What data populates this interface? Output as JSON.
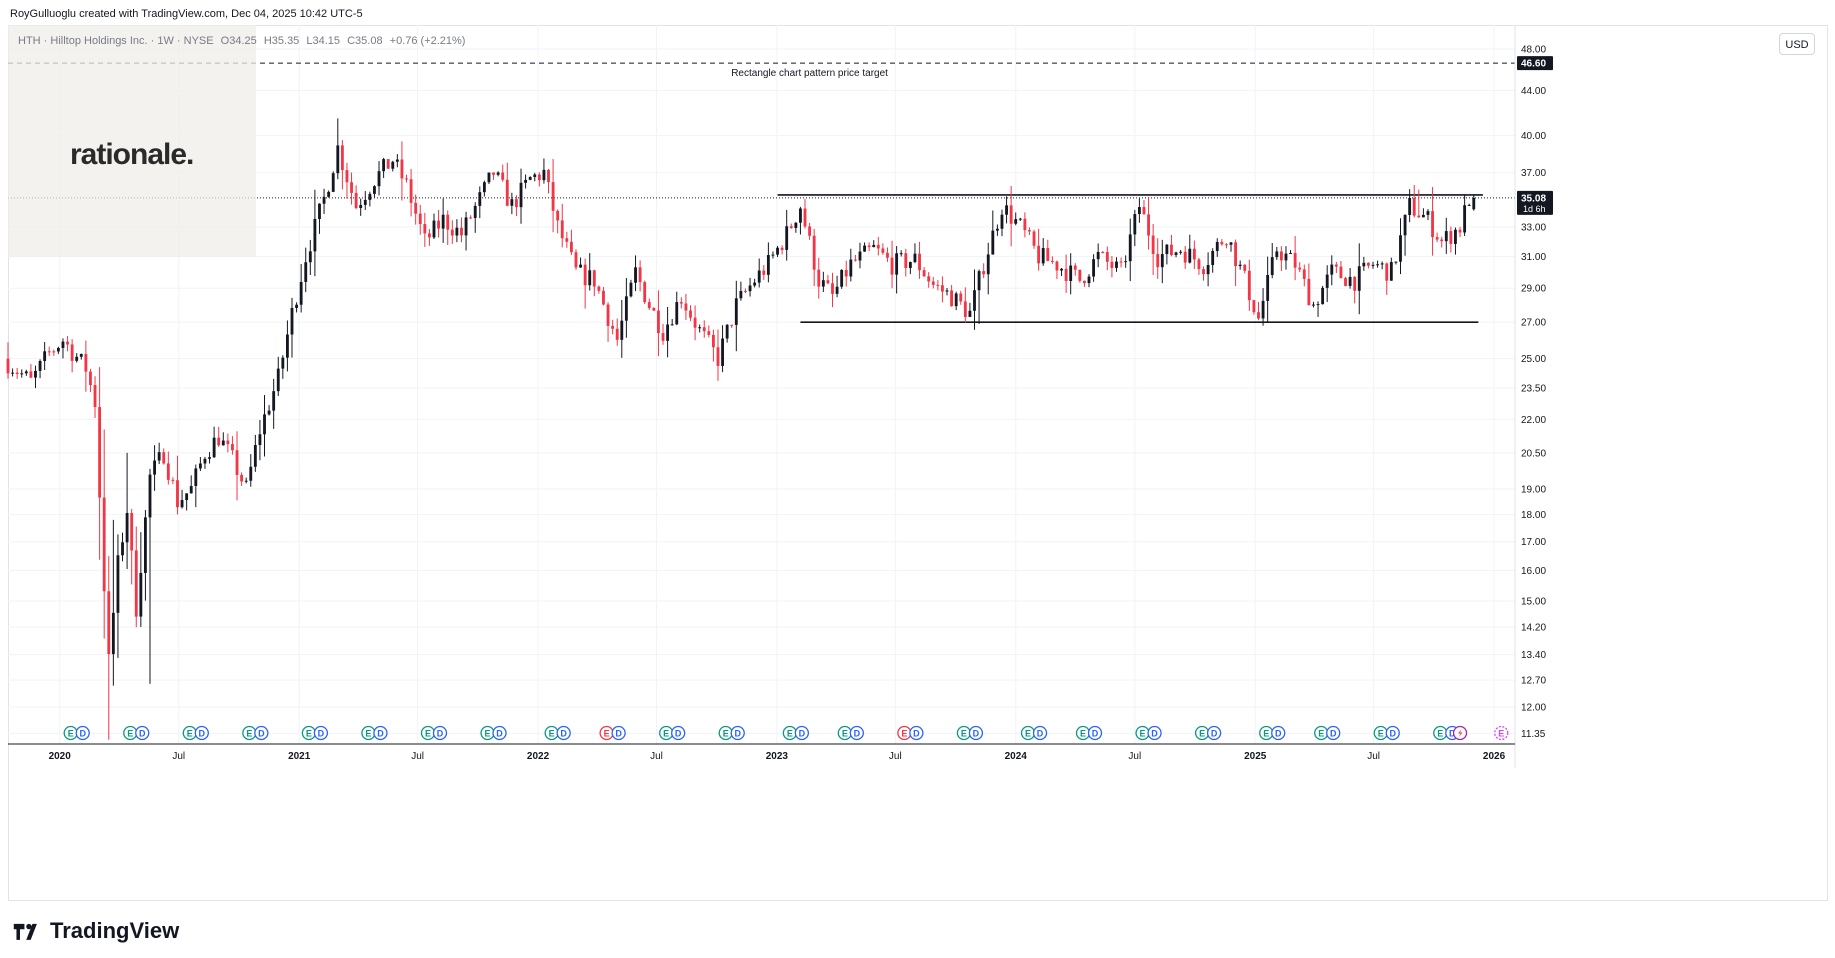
{
  "header": {
    "credit": "RoyGulluoglu created with TradingView.com, Dec 04, 2025 10:42 UTC-5",
    "symbol_line": "HTH · Hilltop Holdings Inc. · 1W · NYSE",
    "ohlc": {
      "open": "O34.25",
      "high": "H35.35",
      "low": "L34.15",
      "close": "C35.08",
      "change": "+0.76 (+2.21%)"
    }
  },
  "logo": {
    "text": "rationale."
  },
  "brand": {
    "text": "TradingView"
  },
  "toolbar": {
    "currency": "USD"
  },
  "colors": {
    "up": "#131722",
    "down": "#f23645",
    "grid": "#f0f3fa",
    "axis": "#787b86",
    "label_bg": "#131722",
    "earnings_green": "#089981",
    "earnings_red": "#f23645",
    "dividend_blue": "#2962ff"
  },
  "chart_data": {
    "type": "candlestick",
    "timeframe": "1W",
    "y_scale": "log",
    "ylim": [
      11.1,
      50.5
    ],
    "xlim": [
      "2019-10-14",
      "2026-02-02"
    ],
    "y_ticks": [
      11.35,
      12.0,
      12.7,
      13.4,
      14.2,
      15.0,
      16.0,
      17.0,
      18.0,
      19.0,
      20.5,
      22.0,
      23.5,
      25.0,
      27.0,
      29.0,
      31.0,
      33.0,
      37.0,
      40.0,
      44.0,
      48.0
    ],
    "x_ticks": [
      {
        "date": "2020-01-01",
        "label": "2020"
      },
      {
        "date": "2020-07-01",
        "label": "Jul"
      },
      {
        "date": "2021-01-01",
        "label": "2021"
      },
      {
        "date": "2021-07-01",
        "label": "Jul"
      },
      {
        "date": "2022-01-01",
        "label": "2022"
      },
      {
        "date": "2022-07-01",
        "label": "Jul"
      },
      {
        "date": "2023-01-01",
        "label": "2023"
      },
      {
        "date": "2023-07-01",
        "label": "Jul"
      },
      {
        "date": "2024-01-01",
        "label": "2024"
      },
      {
        "date": "2024-07-01",
        "label": "Jul"
      },
      {
        "date": "2025-01-01",
        "label": "2025"
      },
      {
        "date": "2025-07-01",
        "label": "Jul"
      },
      {
        "date": "2026-01-01",
        "label": "2026"
      }
    ],
    "price_anchors": [
      [
        "2019-10-14",
        25.0
      ],
      [
        "2019-11-25",
        23.8
      ],
      [
        "2019-12-23",
        25.3
      ],
      [
        "2020-01-13",
        26.0
      ],
      [
        "2020-02-17",
        24.5
      ],
      [
        "2020-03-02",
        22.8
      ],
      [
        "2020-03-16",
        15.5
      ],
      [
        "2020-03-23",
        13.2
      ],
      [
        "2020-04-06",
        16.2
      ],
      [
        "2020-04-20",
        18.2
      ],
      [
        "2020-05-04",
        14.8
      ],
      [
        "2020-05-25",
        19.5
      ],
      [
        "2020-06-15",
        20.5
      ],
      [
        "2020-07-06",
        18.5
      ],
      [
        "2020-07-27",
        19.0
      ],
      [
        "2020-08-17",
        20.5
      ],
      [
        "2020-09-07",
        21.2
      ],
      [
        "2020-09-28",
        20.2
      ],
      [
        "2020-10-19",
        19.0
      ],
      [
        "2020-11-09",
        21.5
      ],
      [
        "2020-12-07",
        24.0
      ],
      [
        "2020-12-28",
        27.5
      ],
      [
        "2021-01-18",
        31.0
      ],
      [
        "2021-02-15",
        35.0
      ],
      [
        "2021-03-08",
        39.0
      ],
      [
        "2021-04-05",
        34.5
      ],
      [
        "2021-05-03",
        36.5
      ],
      [
        "2021-05-31",
        38.0
      ],
      [
        "2021-06-21",
        36.0
      ],
      [
        "2021-07-19",
        32.0
      ],
      [
        "2021-08-16",
        33.5
      ],
      [
        "2021-09-13",
        32.5
      ],
      [
        "2021-10-11",
        35.0
      ],
      [
        "2021-11-01",
        37.0
      ],
      [
        "2021-11-29",
        34.5
      ],
      [
        "2021-12-27",
        36.5
      ],
      [
        "2022-01-17",
        37.0
      ],
      [
        "2022-02-07",
        33.0
      ],
      [
        "2022-03-07",
        30.0
      ],
      [
        "2022-04-04",
        29.5
      ],
      [
        "2022-05-09",
        26.0
      ],
      [
        "2022-06-06",
        30.0
      ],
      [
        "2022-06-27",
        28.0
      ],
      [
        "2022-07-18",
        26.5
      ],
      [
        "2022-08-15",
        28.5
      ],
      [
        "2022-09-12",
        26.5
      ],
      [
        "2022-10-10",
        25.0
      ],
      [
        "2022-11-07",
        28.0
      ],
      [
        "2022-12-05",
        29.5
      ],
      [
        "2022-12-26",
        30.5
      ],
      [
        "2023-01-23",
        32.5
      ],
      [
        "2023-02-13",
        34.5
      ],
      [
        "2023-03-13",
        29.5
      ],
      [
        "2023-04-03",
        28.5
      ],
      [
        "2023-05-01",
        30.5
      ],
      [
        "2023-06-05",
        31.5
      ],
      [
        "2023-07-03",
        30.5
      ],
      [
        "2023-08-07",
        30.8
      ],
      [
        "2023-09-04",
        29.2
      ],
      [
        "2023-10-02",
        28.5
      ],
      [
        "2023-10-30",
        27.5
      ],
      [
        "2023-11-20",
        30.5
      ],
      [
        "2023-12-18",
        34.5
      ],
      [
        "2024-01-15",
        33.0
      ],
      [
        "2024-02-12",
        31.0
      ],
      [
        "2024-03-11",
        30.5
      ],
      [
        "2024-04-15",
        29.5
      ],
      [
        "2024-05-13",
        31.0
      ],
      [
        "2024-06-17",
        30.0
      ],
      [
        "2024-07-15",
        34.5
      ],
      [
        "2024-08-12",
        31.0
      ],
      [
        "2024-09-16",
        31.5
      ],
      [
        "2024-10-21",
        30.5
      ],
      [
        "2024-11-25",
        32.5
      ],
      [
        "2024-12-23",
        29.5
      ],
      [
        "2025-01-13",
        27.2
      ],
      [
        "2025-02-10",
        31.5
      ],
      [
        "2025-03-10",
        30.5
      ],
      [
        "2025-04-07",
        28.0
      ],
      [
        "2025-05-05",
        30.0
      ],
      [
        "2025-06-09",
        29.5
      ],
      [
        "2025-07-07",
        30.5
      ],
      [
        "2025-08-04",
        30.0
      ],
      [
        "2025-09-01",
        34.5
      ],
      [
        "2025-09-29",
        33.5
      ],
      [
        "2025-10-20",
        32.0
      ],
      [
        "2025-11-17",
        33.0
      ],
      [
        "2025-12-01",
        35.08
      ]
    ],
    "spikes": [
      {
        "date": "2020-03-16",
        "low": 11.2
      },
      {
        "date": "2020-03-23",
        "high": 17.8
      },
      {
        "date": "2020-04-13",
        "high": 20.5
      },
      {
        "date": "2020-05-18",
        "low": 12.6
      },
      {
        "date": "2022-10-10",
        "low": 24.3
      },
      {
        "date": "2023-11-06",
        "low": 26.9
      },
      {
        "date": "2025-01-13",
        "low": 26.8
      },
      {
        "date": "2025-04-07",
        "low": 27.3
      },
      {
        "date": "2025-09-08",
        "high": 35.7
      }
    ],
    "last_candle": {
      "date": "2025-12-01",
      "open": 34.25,
      "high": 35.35,
      "low": 34.15,
      "close": 35.08
    },
    "lines": [
      {
        "name": "resistance",
        "from": [
          "2023-01-02",
          35.3
        ],
        "to": [
          "2025-12-15",
          35.3
        ],
        "style": "solid"
      },
      {
        "name": "support",
        "from": [
          "2023-02-06",
          27.0
        ],
        "to": [
          "2025-12-08",
          27.0
        ],
        "style": "solid"
      },
      {
        "name": "price-target",
        "price": 46.6,
        "style": "dashed",
        "label": "Rectangle chart pattern price target"
      },
      {
        "name": "last-price",
        "price": 35.08,
        "style": "dotted"
      }
    ],
    "price_labels": [
      {
        "value": "46.60",
        "price": 46.6
      },
      {
        "value": "35.08",
        "price": 35.08,
        "sub": "1d 6h"
      }
    ],
    "events": [
      {
        "date": "2020-01-27",
        "type": "ED",
        "earnings": "green"
      },
      {
        "date": "2020-04-27",
        "type": "ED",
        "earnings": "green"
      },
      {
        "date": "2020-07-27",
        "type": "ED",
        "earnings": "green"
      },
      {
        "date": "2020-10-26",
        "type": "ED",
        "earnings": "green"
      },
      {
        "date": "2021-01-25",
        "type": "ED",
        "earnings": "green"
      },
      {
        "date": "2021-04-26",
        "type": "ED",
        "earnings": "green"
      },
      {
        "date": "2021-07-26",
        "type": "ED",
        "earnings": "green"
      },
      {
        "date": "2021-10-25",
        "type": "ED",
        "earnings": "green"
      },
      {
        "date": "2022-01-31",
        "type": "ED",
        "earnings": "green"
      },
      {
        "date": "2022-04-25",
        "type": "ED",
        "earnings": "red"
      },
      {
        "date": "2022-07-25",
        "type": "ED",
        "earnings": "green"
      },
      {
        "date": "2022-10-24",
        "type": "ED",
        "earnings": "green"
      },
      {
        "date": "2023-01-30",
        "type": "ED",
        "earnings": "green"
      },
      {
        "date": "2023-04-24",
        "type": "ED",
        "earnings": "green"
      },
      {
        "date": "2023-07-24",
        "type": "ED",
        "earnings": "red"
      },
      {
        "date": "2023-10-23",
        "type": "ED",
        "earnings": "green"
      },
      {
        "date": "2024-01-29",
        "type": "ED",
        "earnings": "green"
      },
      {
        "date": "2024-04-22",
        "type": "ED",
        "earnings": "green"
      },
      {
        "date": "2024-07-22",
        "type": "ED",
        "earnings": "green"
      },
      {
        "date": "2024-10-21",
        "type": "ED",
        "earnings": "green"
      },
      {
        "date": "2025-01-27",
        "type": "ED",
        "earnings": "green"
      },
      {
        "date": "2025-04-21",
        "type": "ED",
        "earnings": "green"
      },
      {
        "date": "2025-07-21",
        "type": "ED",
        "earnings": "green"
      },
      {
        "date": "2025-10-20",
        "type": "ED",
        "earnings": "green"
      },
      {
        "date": "2025-11-10",
        "type": "split"
      },
      {
        "date": "2026-01-12",
        "type": "E",
        "earnings": "upcoming"
      }
    ]
  }
}
